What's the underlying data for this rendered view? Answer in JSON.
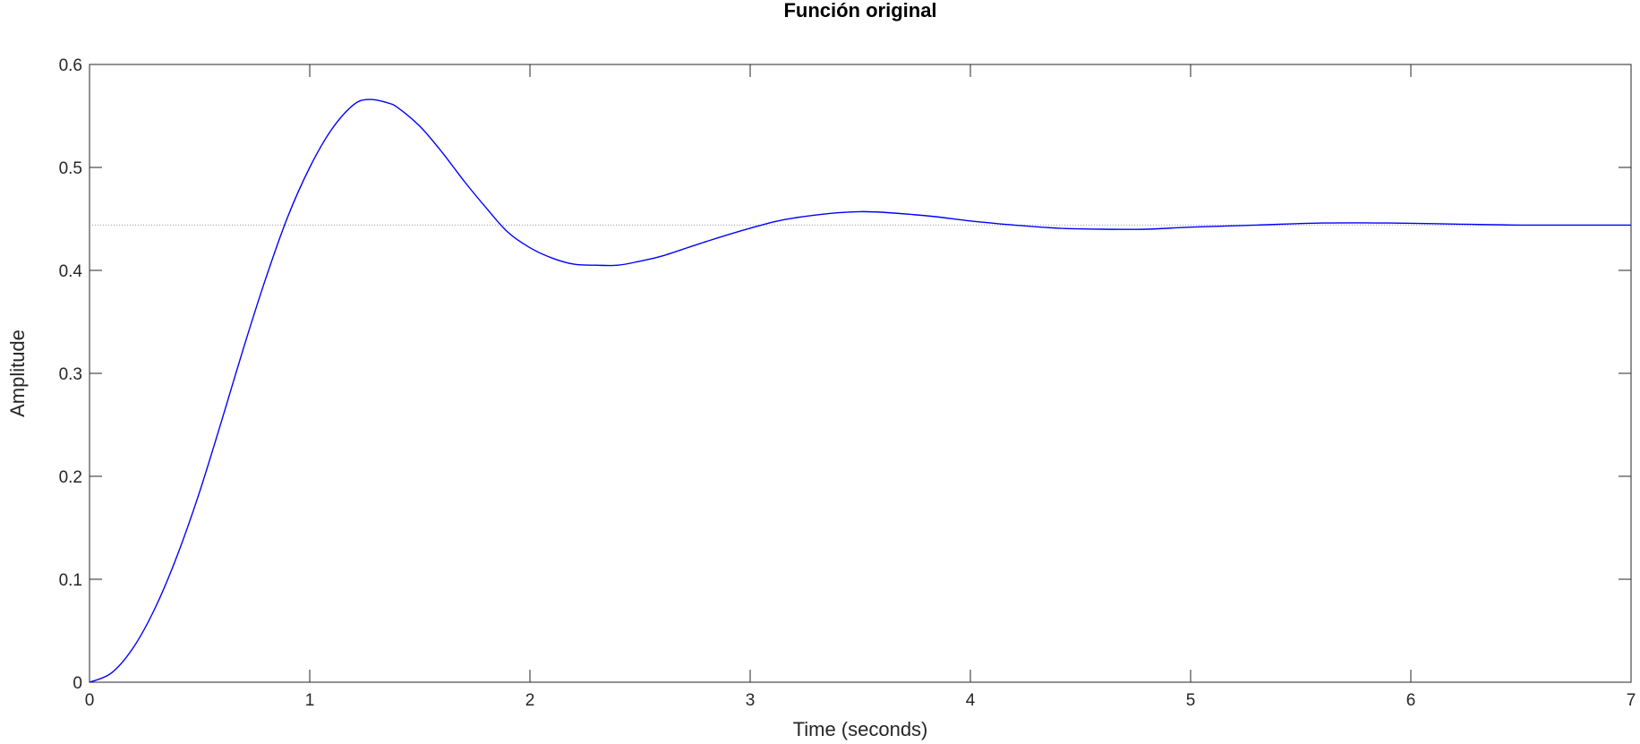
{
  "chart_data": {
    "type": "line",
    "title": "Función original",
    "xlabel": "Time (seconds)",
    "ylabel": "Amplitude",
    "xlim": [
      0,
      7
    ],
    "ylim": [
      0,
      0.6
    ],
    "x_ticks": [
      "0",
      "1",
      "2",
      "3",
      "4",
      "5",
      "6",
      "7"
    ],
    "y_ticks": [
      "0",
      "0.1",
      "0.2",
      "0.3",
      "0.4",
      "0.5",
      "0.6"
    ],
    "grid": false,
    "steady_state": 0.444,
    "series": [
      {
        "color": "#0000ff",
        "x": [
          0,
          0.1,
          0.2,
          0.3,
          0.4,
          0.5,
          0.6,
          0.7,
          0.8,
          0.9,
          1.0,
          1.1,
          1.2,
          1.27,
          1.35,
          1.4,
          1.5,
          1.6,
          1.7,
          1.8,
          1.9,
          2.0,
          2.1,
          2.2,
          2.3,
          2.4,
          2.5,
          2.6,
          2.8,
          3.0,
          3.2,
          3.5,
          3.8,
          4.0,
          4.2,
          4.4,
          4.6,
          4.8,
          5.0,
          5.3,
          5.6,
          5.9,
          6.2,
          6.5,
          7.0
        ],
        "y": [
          0,
          0.009,
          0.034,
          0.073,
          0.124,
          0.185,
          0.254,
          0.325,
          0.392,
          0.452,
          0.5,
          0.537,
          0.561,
          0.566,
          0.563,
          0.558,
          0.54,
          0.515,
          0.487,
          0.461,
          0.437,
          0.422,
          0.412,
          0.406,
          0.405,
          0.405,
          0.409,
          0.414,
          0.428,
          0.441,
          0.451,
          0.457,
          0.453,
          0.448,
          0.444,
          0.441,
          0.44,
          0.44,
          0.442,
          0.444,
          0.446,
          0.446,
          0.445,
          0.444,
          0.444
        ]
      }
    ]
  }
}
